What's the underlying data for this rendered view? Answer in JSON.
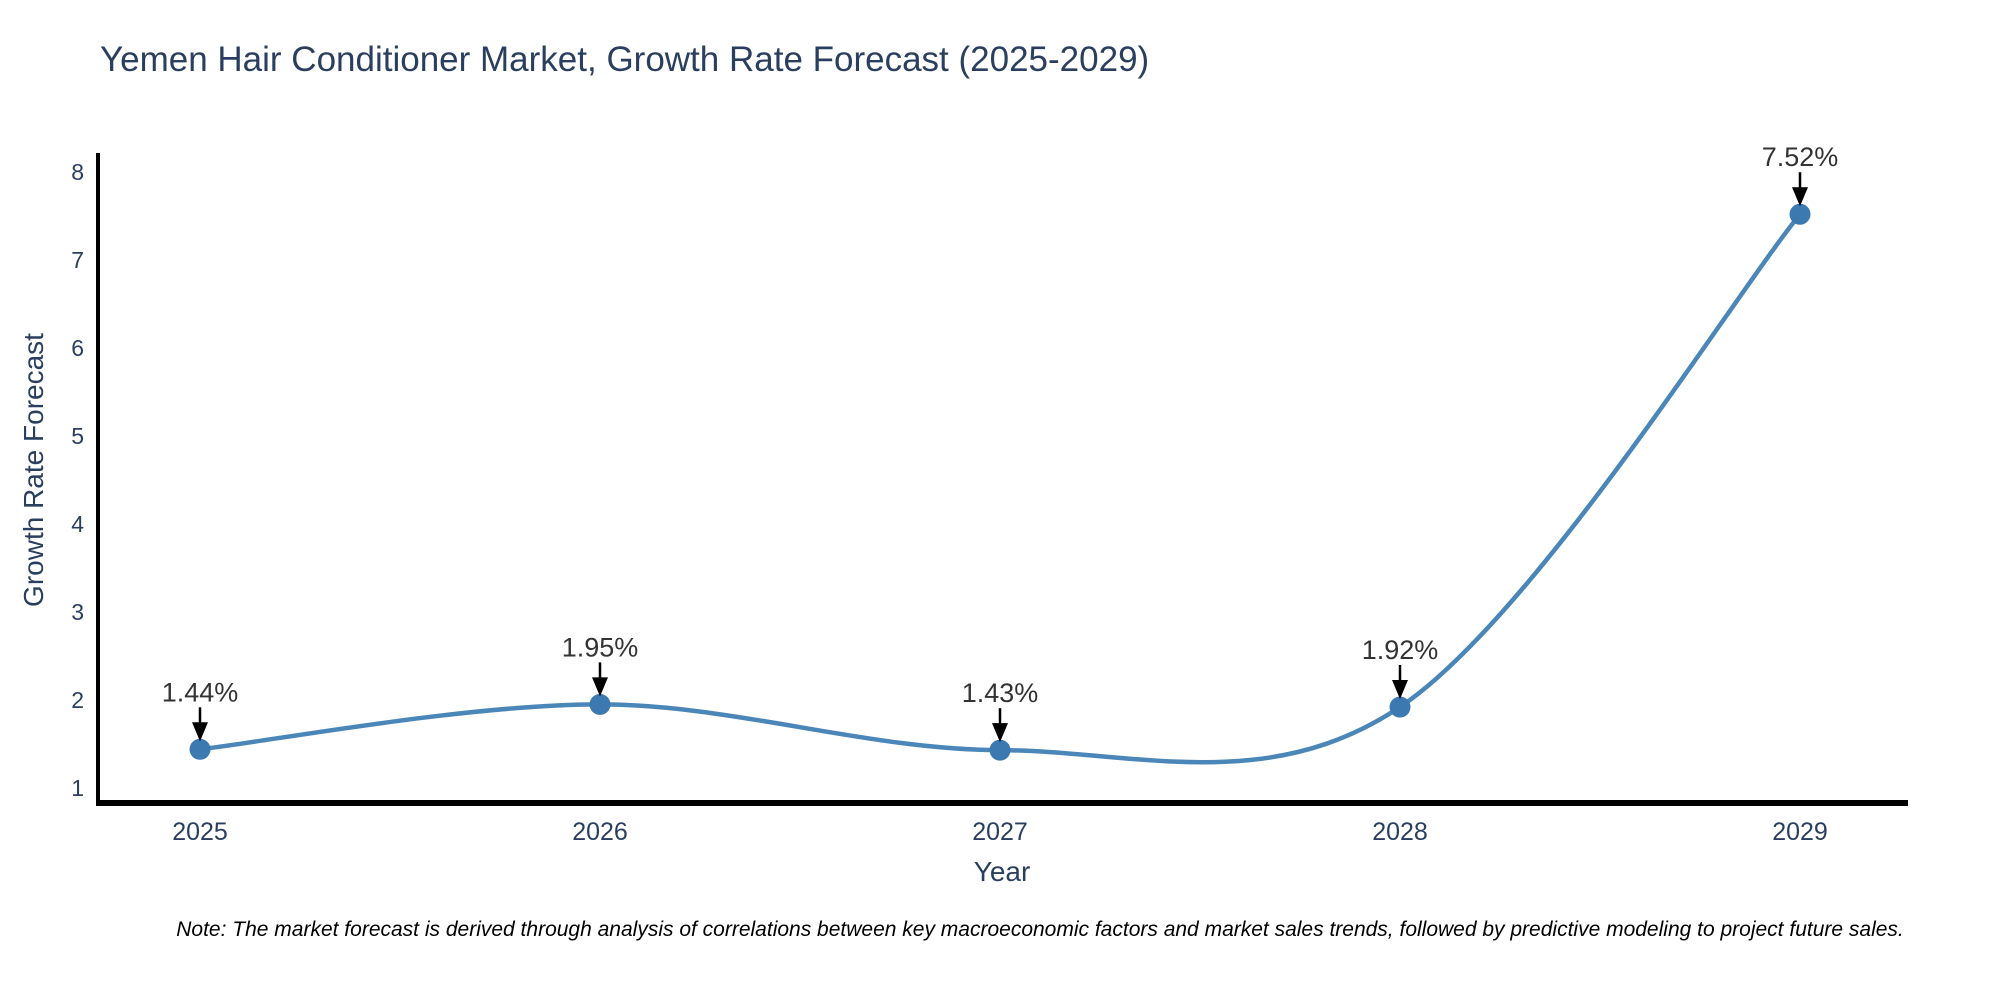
{
  "note": "Note: The market forecast is derived through analysis of correlations between key macroeconomic factors and market sales trends, followed by predictive modeling to project future sales.",
  "chart_data": {
    "type": "line",
    "title": "Yemen Hair Conditioner Market, Growth Rate Forecast (2025-2029)",
    "xlabel": "Year",
    "ylabel": "Growth Rate Forecast",
    "categories": [
      "2025",
      "2026",
      "2027",
      "2028",
      "2029"
    ],
    "values": [
      1.44,
      1.95,
      1.43,
      1.92,
      7.52
    ],
    "labels": [
      "1.44%",
      "1.95%",
      "1.43%",
      "1.92%",
      "7.52%"
    ],
    "ylim": [
      1,
      8
    ],
    "yticks": [
      1,
      2,
      3,
      4,
      5,
      6,
      7,
      8
    ],
    "grid": false,
    "line_shape": "spline",
    "legend": "none",
    "colors": {
      "line": "#4a86b8",
      "marker": "#3b79b0",
      "axis": "#000000",
      "arrow": "#000000",
      "title_text": "#2a3f5f",
      "tick_text": "#2a3f5f",
      "annotation_text": "#333333",
      "background": "#ffffff"
    }
  }
}
